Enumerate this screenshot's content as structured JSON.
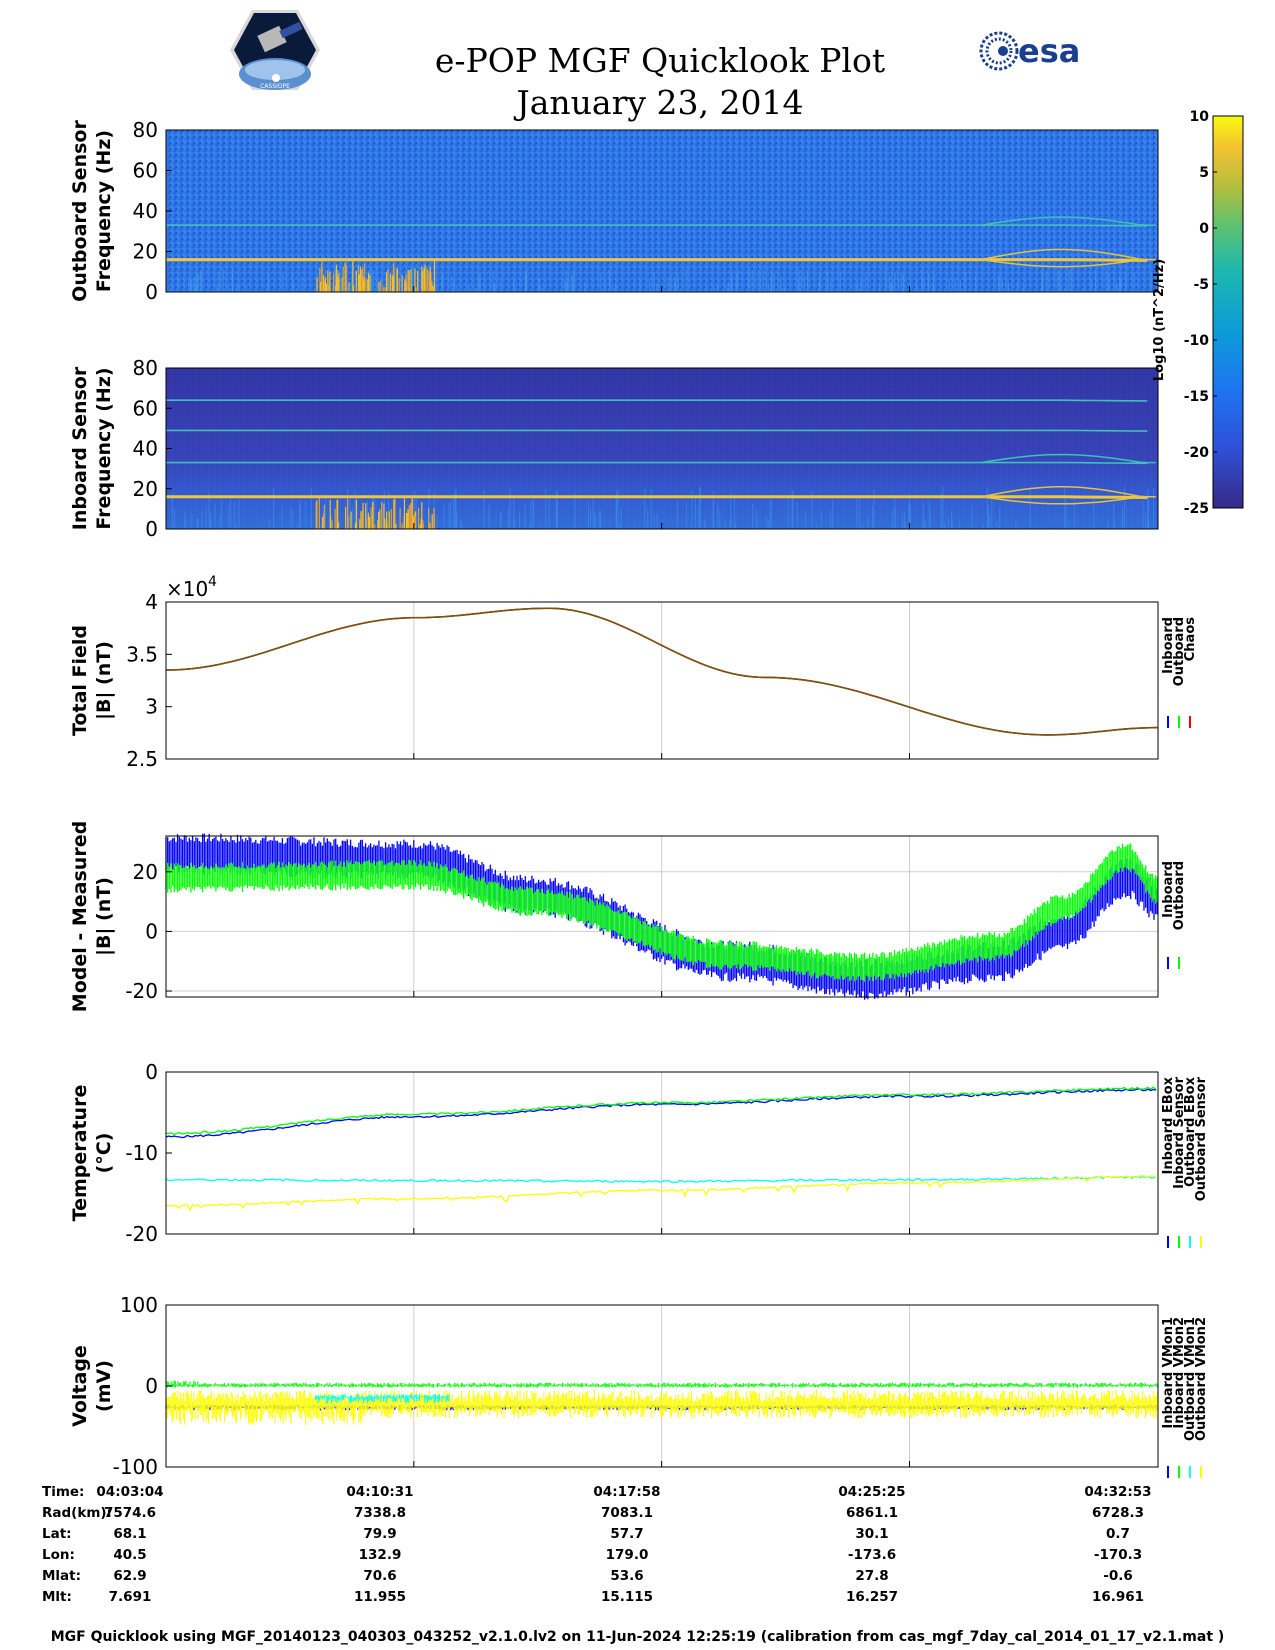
{
  "header": {
    "title": "e-POP MGF Quicklook Plot",
    "date": "January 23, 2014",
    "agency_logo_text": "esa",
    "mission_logo_text": "CASSIOPE"
  },
  "colorbar": {
    "label": "Log10 (nT^2/Hz)",
    "ticks": [
      "10",
      "5",
      "0",
      "-5",
      "-10",
      "-15",
      "-20",
      "-25"
    ]
  },
  "colors": {
    "inboard": "#0000ff",
    "outboard": "#00ff00",
    "chaos": "#ff0000",
    "cyan": "#00ffff",
    "yellow": "#ffff00",
    "background_spec": "#2a6fe6",
    "deep_spec": "#3438a8"
  },
  "chart_data": [
    {
      "type": "heatmap",
      "name": "outboard-spectrogram",
      "ylabel": [
        "Outboard Sensor",
        "Frequency (Hz)"
      ],
      "ylim": [
        0,
        80
      ],
      "yticks": [
        "0",
        "20",
        "40",
        "60",
        "80"
      ],
      "color_range": [
        -25,
        10
      ],
      "bands_hz": [
        16,
        33
      ]
    },
    {
      "type": "heatmap",
      "name": "inboard-spectrogram",
      "ylabel": [
        "Inboard Sensor",
        "Frequency (Hz)"
      ],
      "ylim": [
        0,
        80
      ],
      "yticks": [
        "0",
        "20",
        "40",
        "60",
        "80"
      ],
      "color_range": [
        -25,
        10
      ],
      "bands_hz": [
        16,
        33,
        49,
        64
      ]
    },
    {
      "type": "line",
      "name": "total-field",
      "ylabel": [
        "Total Field",
        "|B| (nT)"
      ],
      "ylim": [
        25000,
        40000
      ],
      "yticks": [
        "2.5",
        "3",
        "3.5",
        "4"
      ],
      "multiplier": "×10",
      "exponent": "4",
      "legend": [
        "Inboard",
        "Outboard",
        "Chaos"
      ],
      "x_min": [
        0,
        7.5,
        15,
        22.5,
        29.8
      ],
      "values": [
        33500,
        38500,
        39400,
        32800,
        27300,
        28000
      ],
      "x_points": [
        0,
        7.5,
        11.5,
        18,
        26.5,
        29.8
      ]
    },
    {
      "type": "line",
      "name": "model-measured",
      "ylabel": [
        "Model - Measured",
        "|B| (nT)"
      ],
      "ylim": [
        -22,
        32
      ],
      "yticks": [
        "-20",
        "0",
        "20"
      ],
      "legend": [
        "Inboard",
        "Outboard"
      ],
      "series": [
        {
          "name": "Inboard",
          "x": [
            0,
            7.5,
            11,
            17,
            21,
            25,
            27,
            28.9,
            29.8
          ],
          "center": [
            26,
            24,
            12,
            -10,
            -16,
            -10,
            0,
            18,
            10
          ],
          "spread": 7
        },
        {
          "name": "Outboard",
          "x": [
            0,
            7.5,
            11,
            17,
            21,
            25,
            27,
            28.9,
            29.8
          ],
          "center": [
            18,
            19,
            10,
            -8,
            -12,
            -5,
            8,
            25,
            14
          ],
          "spread": 5
        }
      ]
    },
    {
      "type": "line",
      "name": "temperature",
      "ylabel": [
        "Temperature",
        "(°C)"
      ],
      "ylim": [
        -20,
        0
      ],
      "yticks": [
        "-20",
        "-10",
        "0"
      ],
      "legend": [
        "Inboard EBox",
        "Inboard Sensor",
        "Outboard EBox",
        "Outboard Sensor"
      ],
      "series": [
        {
          "name": "Inboard EBox",
          "x": [
            0,
            7.5,
            15,
            22.5,
            29.8
          ],
          "values": [
            -8,
            -5.5,
            -4,
            -3,
            -2.2
          ]
        },
        {
          "name": "Inboard Sensor",
          "x": [
            0,
            7.5,
            15,
            22.5,
            29.8
          ],
          "values": [
            -7.6,
            -5.2,
            -3.8,
            -2.8,
            -2
          ]
        },
        {
          "name": "Outboard EBox",
          "x": [
            0,
            7.5,
            15,
            22.5,
            29.8
          ],
          "values": [
            -13.3,
            -13.4,
            -13.5,
            -13.3,
            -13
          ]
        },
        {
          "name": "Outboard Sensor",
          "x": [
            0,
            7.5,
            15,
            22.5,
            29.8
          ],
          "values": [
            -16.5,
            -15.6,
            -14.6,
            -13.7,
            -12.9
          ]
        }
      ]
    },
    {
      "type": "line",
      "name": "voltage",
      "ylabel": [
        "Voltage",
        "(mV)"
      ],
      "ylim": [
        -100,
        100
      ],
      "yticks": [
        "-100",
        "0",
        "100"
      ],
      "legend": [
        "Inboard VMon1",
        "Inboard VMon2",
        "Outboard VMon1",
        "Outboard VMon2"
      ],
      "series": [
        {
          "name": "Inboard VMon1",
          "level": -26
        },
        {
          "name": "Inboard VMon2",
          "level": 1
        },
        {
          "name": "Outboard VMon1",
          "level": -14
        },
        {
          "name": "Outboard VMon2",
          "level": -22
        }
      ]
    }
  ],
  "ephemeris": {
    "labels": [
      "Time:",
      "Rad(km):",
      "Lat:",
      "Lon:",
      "Mlat:",
      "Mlt:"
    ],
    "columns": [
      [
        "04:03:04",
        "7574.6",
        "68.1",
        "40.5",
        "62.9",
        "7.691"
      ],
      [
        "04:10:31",
        "7338.8",
        "79.9",
        "132.9",
        "70.6",
        "11.955"
      ],
      [
        "04:17:58",
        "7083.1",
        "57.7",
        "179.0",
        "53.6",
        "15.115"
      ],
      [
        "04:25:25",
        "6861.1",
        "30.1",
        "-173.6",
        "27.8",
        "16.257"
      ],
      [
        "04:32:53",
        "6728.3",
        "0.7",
        "-170.3",
        "-0.6",
        "16.961"
      ]
    ]
  },
  "footer": "MGF Quicklook using MGF_20140123_040303_043252_v2.1.0.lv2 on 11-Jun-2024 12:25:19 (calibration from cas_mgf_7day_cal_2014_01_17_v2.1.mat )"
}
